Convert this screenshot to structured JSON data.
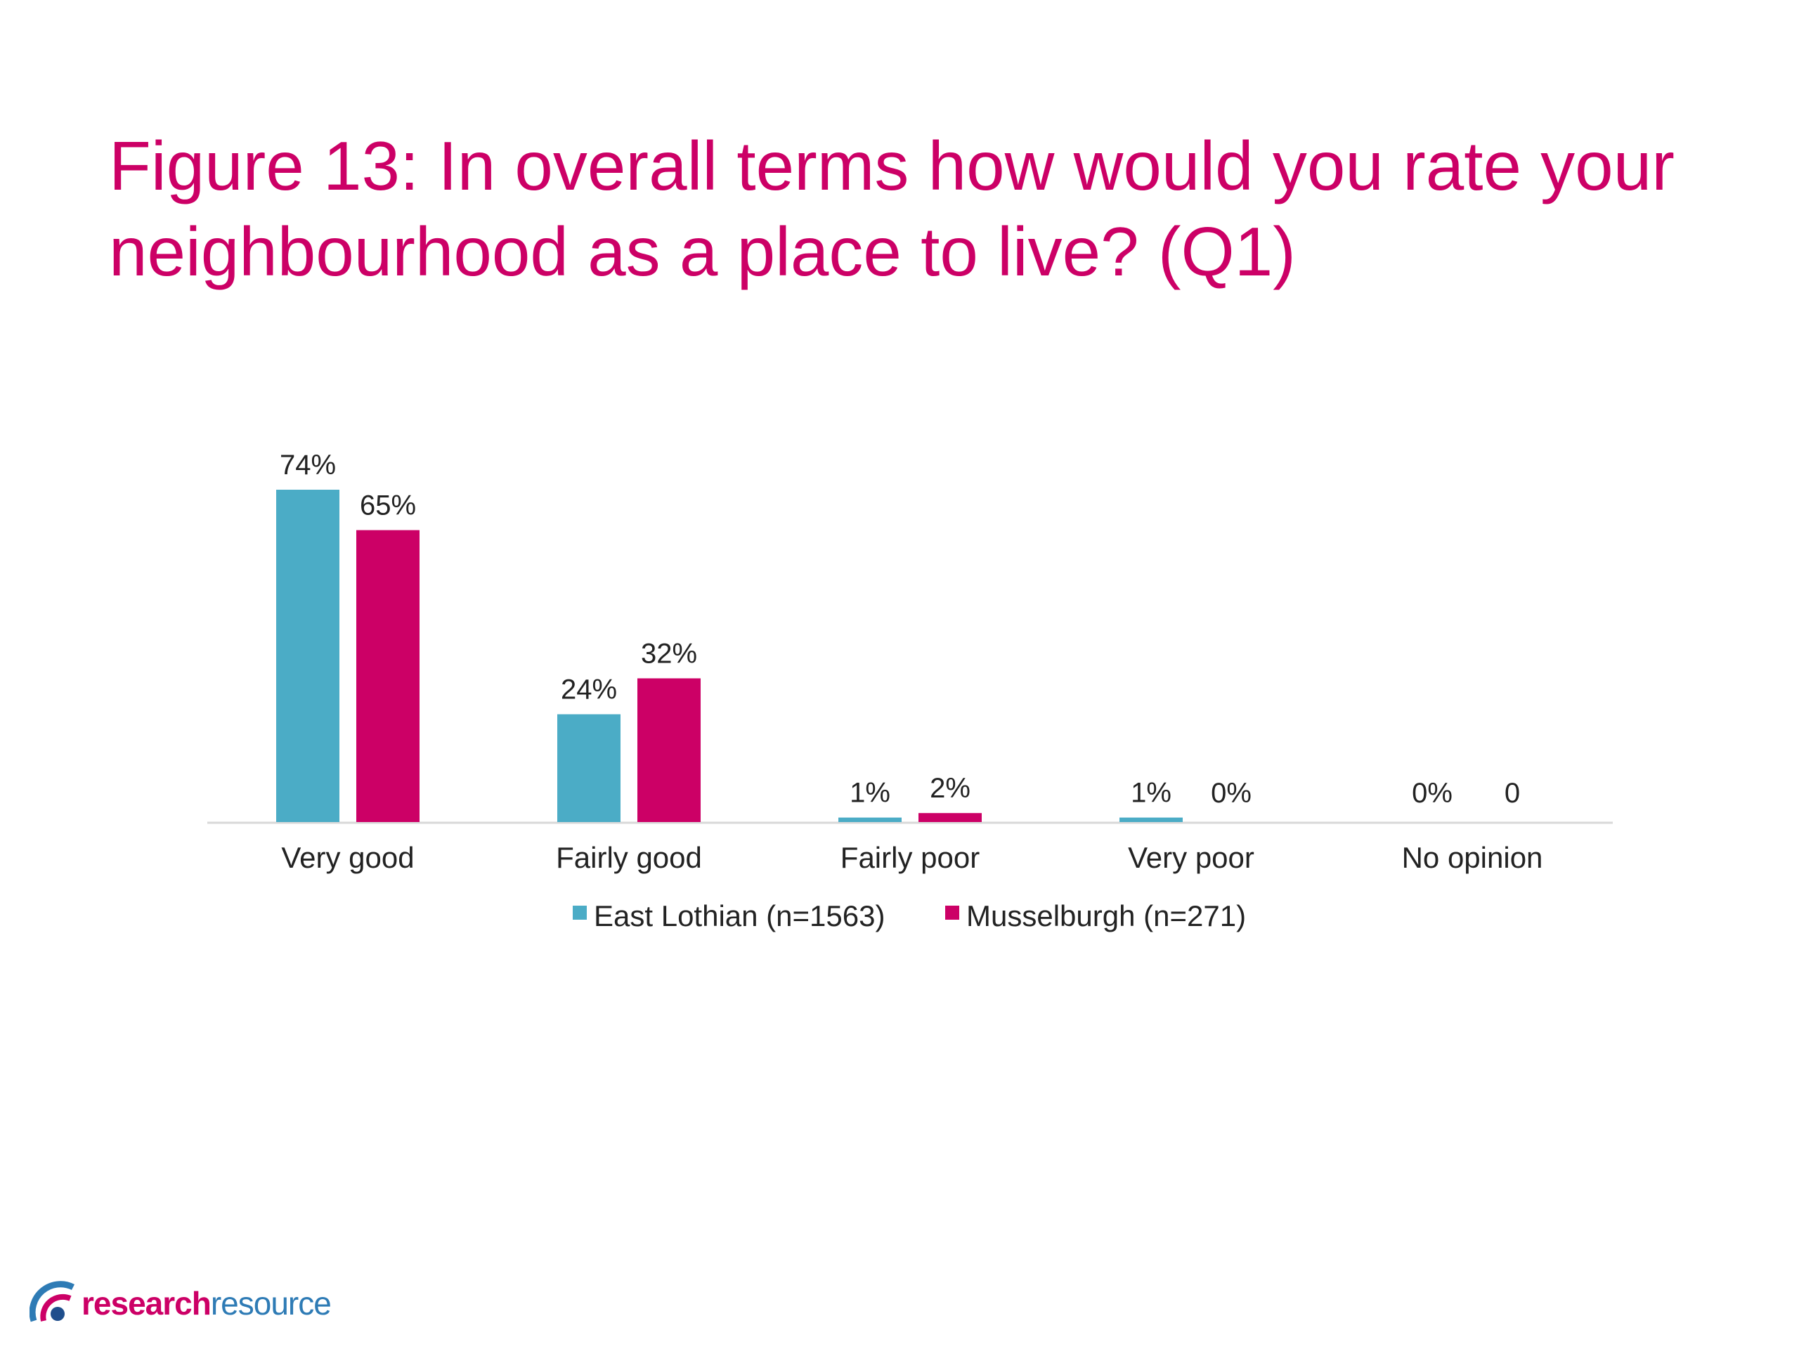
{
  "title": "Figure 13: In overall terms how would you rate your neighbourhood as a place to live? (Q1)",
  "colors": {
    "title": "#CC0066",
    "series1": "#4BACC6",
    "series2": "#CC0066",
    "axis": "#D9D9D9"
  },
  "logo": {
    "word1": "research",
    "word2": "resource",
    "icon": "arc-logo-icon"
  },
  "chart_data": {
    "type": "bar",
    "categories": [
      "Very good",
      "Fairly good",
      "Fairly poor",
      "Very poor",
      "No opinion"
    ],
    "series": [
      {
        "name": "East Lothian (n=1563)",
        "values": [
          74,
          24,
          1,
          1,
          0
        ],
        "labels": [
          "74%",
          "24%",
          "1%",
          "1%",
          "0%"
        ]
      },
      {
        "name": "Musselburgh (n=271)",
        "values": [
          65,
          32,
          2,
          0,
          0
        ],
        "labels": [
          "65%",
          "32%",
          "2%",
          "0%",
          "0"
        ]
      }
    ],
    "ylim": [
      0,
      80
    ],
    "legend": "bottom",
    "grid": false
  }
}
